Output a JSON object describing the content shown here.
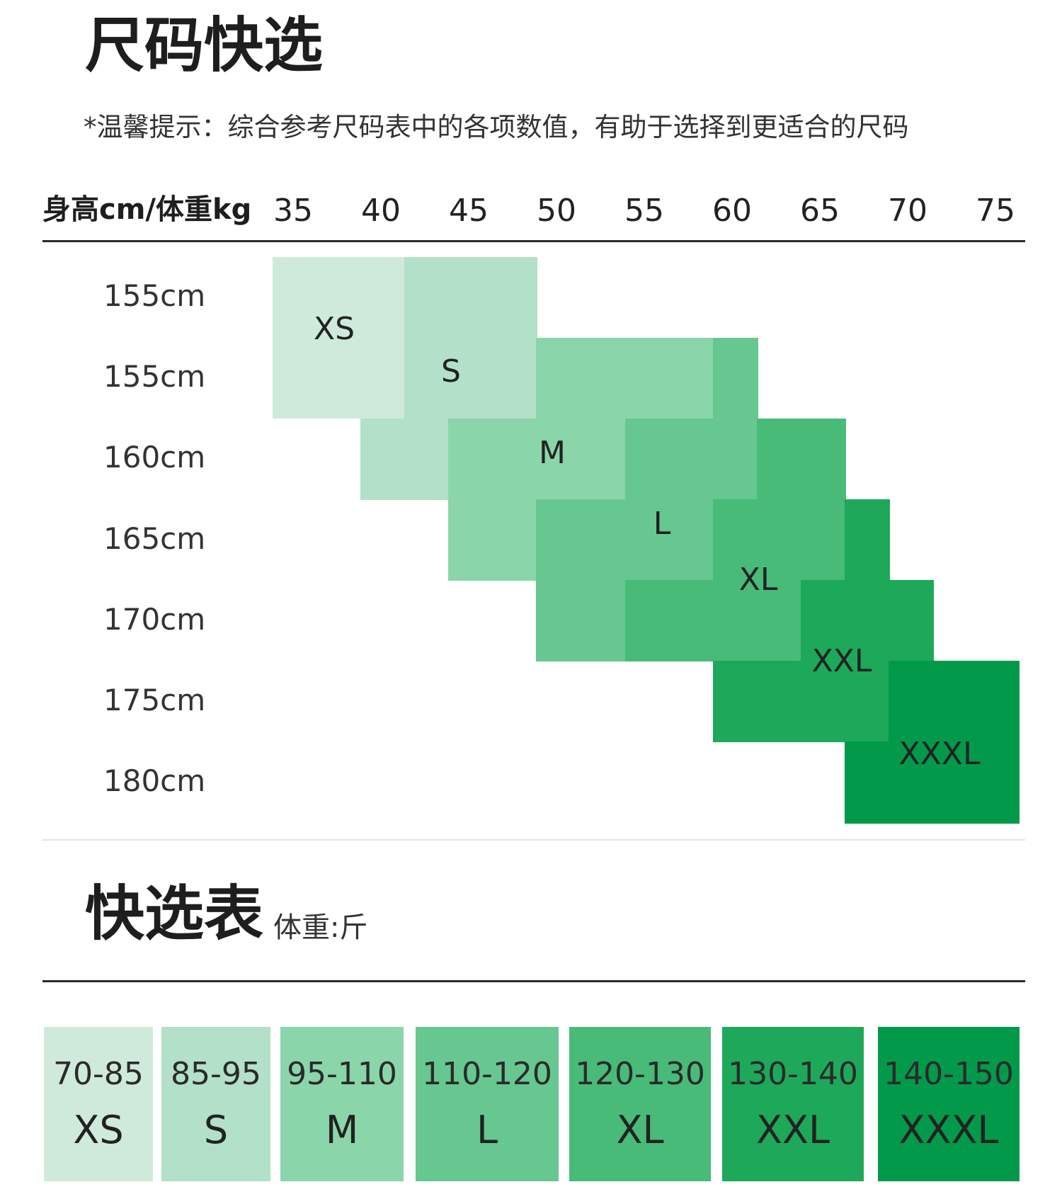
{
  "title": "尺码快选",
  "tip": "*温馨提示：综合参考尺码表中的各项数值，有助于选择到更适合的尺码",
  "axis_label": "身高cm/体重kg",
  "weights": [
    "35",
    "40",
    "45",
    "50",
    "55",
    "60",
    "65",
    "70",
    "75"
  ],
  "heights": [
    "155cm",
    "155cm",
    "160cm",
    "165cm",
    "170cm",
    "175cm",
    "180cm"
  ],
  "colors": {
    "XS": "#cfeadb",
    "S": "#b3e0c8",
    "M": "#8bd5aa",
    "L": "#66c791",
    "XL": "#48bb79",
    "XXL": "#1ea85a",
    "XXXL": "#03994a"
  },
  "size_labels": [
    "XS",
    "S",
    "M",
    "L",
    "XL",
    "XXL",
    "XXXL"
  ],
  "quick_table": {
    "title": "快选表",
    "unit": "体重:斤",
    "items": [
      {
        "range": "70-85",
        "size": "XS"
      },
      {
        "range": "85-95",
        "size": "S"
      },
      {
        "range": "95-110",
        "size": "M"
      },
      {
        "range": "110-120",
        "size": "L"
      },
      {
        "range": "120-130",
        "size": "XL"
      },
      {
        "range": "130-140",
        "size": "XXL"
      },
      {
        "range": "140-150",
        "size": "XXXL"
      }
    ]
  }
}
